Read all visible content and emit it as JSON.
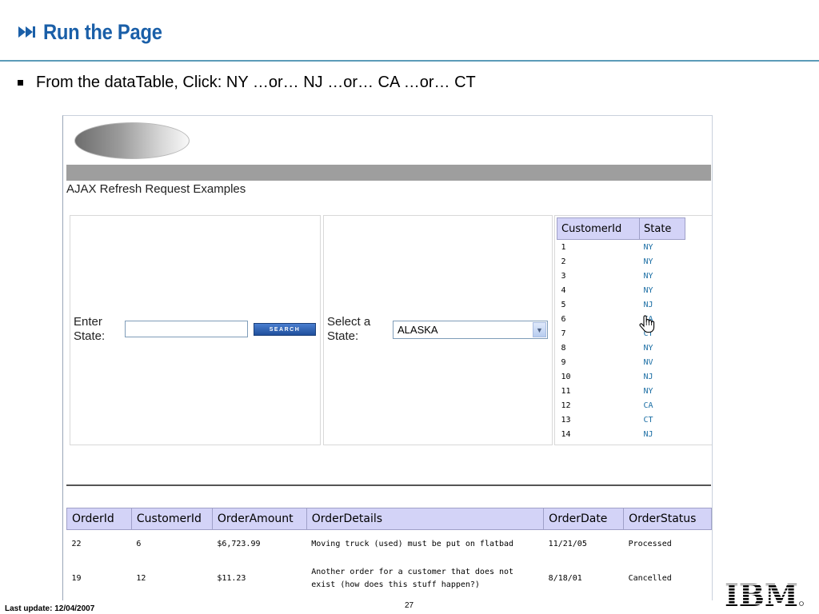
{
  "slide": {
    "title": "Run the Page",
    "bullet": "From the dataTable, Click:  NY …or…  NJ …or…  CA …or…  CT",
    "footer_left": "Last update: 12/04/2007",
    "page_number": "27",
    "logo_text": "IBM"
  },
  "app": {
    "heading": "AJAX Refresh Request Examples",
    "enter_state_label_line1": "Enter",
    "enter_state_label_line2": "State:",
    "state_input_value": "",
    "search_button_label": "SEARCH",
    "select_state_label_line1": "Select a",
    "select_state_label_line2": "State:",
    "state_select_value": "ALASKA"
  },
  "customer_table": {
    "headers": [
      "CustomerId",
      "State"
    ],
    "rows": [
      {
        "id": "1",
        "state": "NY"
      },
      {
        "id": "2",
        "state": "NY"
      },
      {
        "id": "3",
        "state": "NY"
      },
      {
        "id": "4",
        "state": "NY"
      },
      {
        "id": "5",
        "state": "NJ"
      },
      {
        "id": "6",
        "state": "CA"
      },
      {
        "id": "7",
        "state": "CT"
      },
      {
        "id": "8",
        "state": "NY"
      },
      {
        "id": "9",
        "state": "NV"
      },
      {
        "id": "10",
        "state": "NJ"
      },
      {
        "id": "11",
        "state": "NY"
      },
      {
        "id": "12",
        "state": "CA"
      },
      {
        "id": "13",
        "state": "CT"
      },
      {
        "id": "14",
        "state": "NJ"
      }
    ]
  },
  "order_table": {
    "headers": [
      "OrderId",
      "CustomerId",
      "OrderAmount",
      "OrderDetails",
      "OrderDate",
      "OrderStatus"
    ],
    "rows": [
      {
        "order_id": "22",
        "customer_id": "6",
        "amount": "$6,723.99",
        "details": "Moving truck (used) must be put on flatbad",
        "date": "11/21/05",
        "status": "Processed"
      },
      {
        "order_id": "19",
        "customer_id": "12",
        "amount": "$11.23",
        "details": "Another order for a customer that does not exist (how does this stuff happen?)",
        "date": "8/18/01",
        "status": "Cancelled"
      }
    ]
  },
  "colors": {
    "title": "#1a5fa8",
    "table_header": "#d3d3f7",
    "state_link": "#1d6fa5",
    "gray_bar": "#9e9e9e"
  }
}
